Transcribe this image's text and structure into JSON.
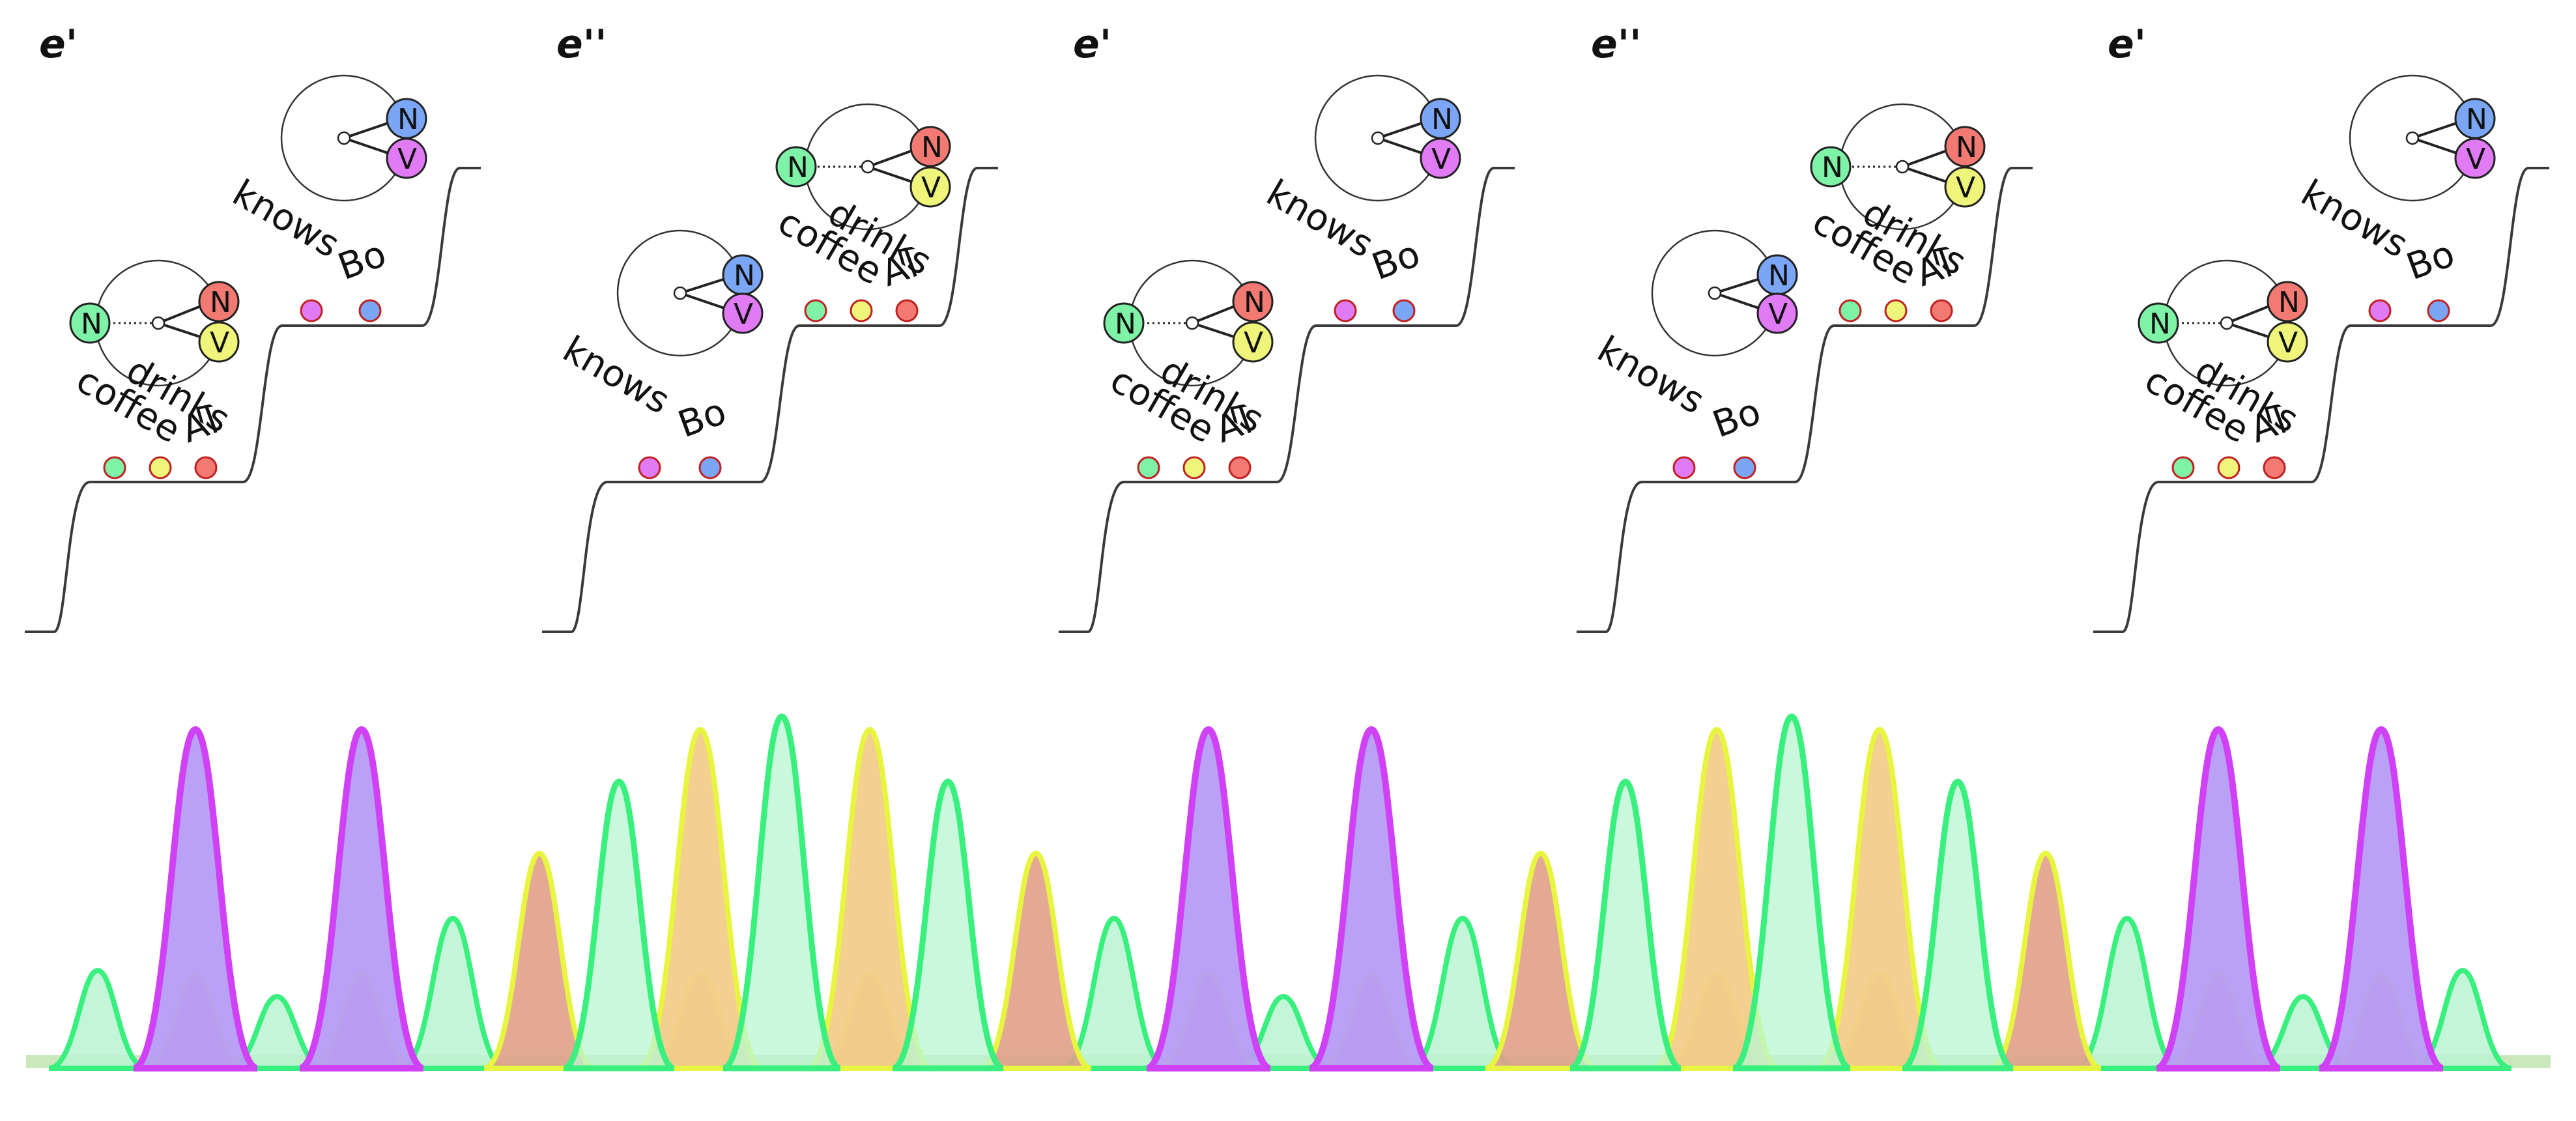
{
  "panels": [
    {
      "label": "e'",
      "variant": "A"
    },
    {
      "label": "e''",
      "variant": "B"
    },
    {
      "label": "e'",
      "variant": "A"
    },
    {
      "label": "e''",
      "variant": "B"
    },
    {
      "label": "e'",
      "variant": "A"
    }
  ],
  "words": {
    "drinks": "drinks",
    "coffee": "coffee",
    "al": "Al",
    "knows": "knows",
    "bo": "Bo"
  },
  "node_letters": {
    "noun": "N",
    "verb": "V"
  },
  "colors": {
    "green": "#7ef2a6",
    "yellow": "#eef57a",
    "red": "#f27a72",
    "magenta": "#e07af5",
    "blue": "#7aa6f5",
    "curve": "#3a3a3a",
    "purple_fill": "#b69cf5",
    "orange_fill": "#f2cc8a",
    "mint_fill": "#b8f5d2",
    "wave_green": "#39f07e",
    "wave_magenta": "#d040f5",
    "wave_yellow": "#e8f540",
    "wave_red": "#f05050"
  }
}
